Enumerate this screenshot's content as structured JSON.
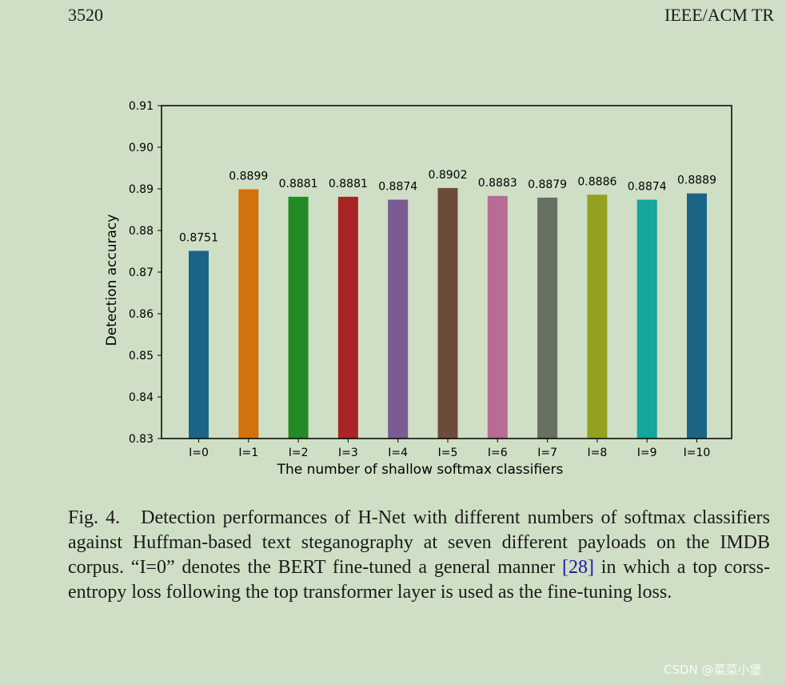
{
  "header": {
    "page_number": "3520",
    "journal": "IEEE/ACM TR"
  },
  "chart_data": {
    "type": "bar",
    "xlabel": "The number of shallow softmax classifiers",
    "ylabel": "Detection accuracy",
    "ylim": [
      0.83,
      0.91
    ],
    "yticks": [
      "0.83",
      "0.84",
      "0.85",
      "0.86",
      "0.87",
      "0.88",
      "0.89",
      "0.90",
      "0.91"
    ],
    "categories": [
      "I=0",
      "I=1",
      "I=2",
      "I=3",
      "I=4",
      "I=5",
      "I=6",
      "I=7",
      "I=8",
      "I=9",
      "I=10"
    ],
    "values": [
      0.8751,
      0.8899,
      0.8881,
      0.8881,
      0.8874,
      0.8902,
      0.8883,
      0.8879,
      0.8886,
      0.8874,
      0.8889
    ],
    "value_labels": [
      "0.8751",
      "0.8899",
      "0.8881",
      "0.8881",
      "0.8874",
      "0.8902",
      "0.8883",
      "0.8879",
      "0.8886",
      "0.8874",
      "0.8889"
    ],
    "colors": [
      "#1a6585",
      "#d2720c",
      "#238b26",
      "#a92424",
      "#7a5b93",
      "#6d4b3a",
      "#b86b94",
      "#687064",
      "#94a120",
      "#15a69d",
      "#1a6585"
    ],
    "grid": false,
    "legend": "none"
  },
  "caption": {
    "fig_label": "Fig. 4.",
    "text": "Detection performances of H-Net with different numbers of softmax classifiers against Huffman-based text steganography at seven different payloads on the IMDB corpus. “I=0” denotes the BERT fine-tuned a general manner ",
    "ref": "[28]",
    "text_after": " in which a top corss-entropy loss following the top transformer layer is used as the fine-tuning loss."
  },
  "watermark": "CSDN @菜菜小堡"
}
